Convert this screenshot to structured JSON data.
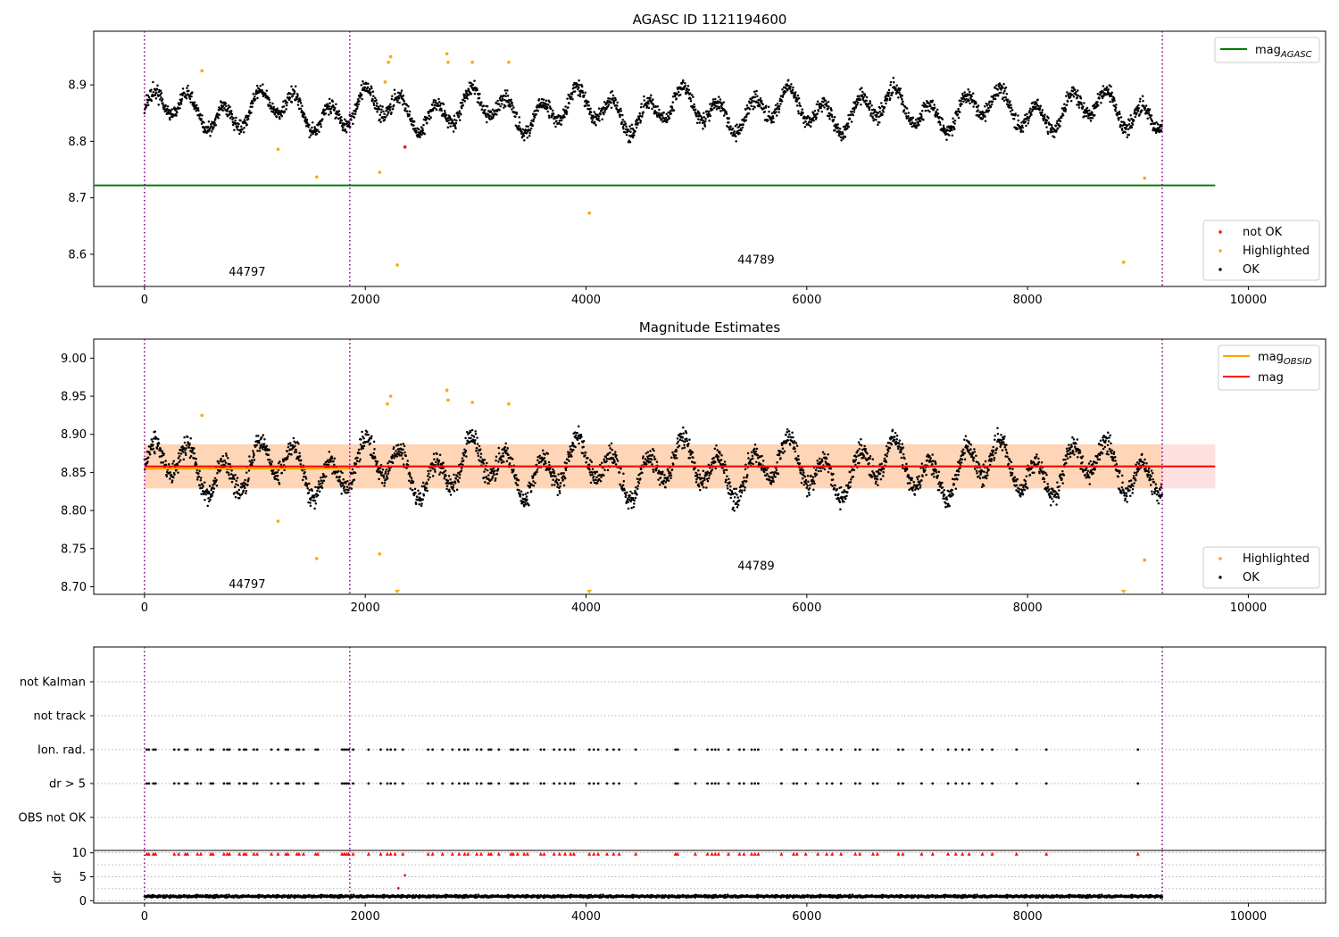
{
  "chart_data": [
    {
      "type": "scatter",
      "title": "AGASC ID 1121194600",
      "xlim": [
        -460,
        10700
      ],
      "ylim": [
        8.543,
        8.995
      ],
      "xticks": [
        0,
        2000,
        4000,
        6000,
        8000,
        10000
      ],
      "yticks": [
        8.6,
        8.7,
        8.8,
        8.9
      ],
      "obsid_boundaries": [
        0,
        1860,
        9220
      ],
      "obsid_labels": [
        {
          "text": "44797",
          "x": 930,
          "y": 8.568
        },
        {
          "text": "44789",
          "x": 5540,
          "y": 8.59
        }
      ],
      "mag_agasc": 8.722,
      "mag_agasc_x_range": [
        -460,
        9700
      ],
      "series": [
        {
          "name": "not OK",
          "color": "#ff0000",
          "points": [
            [
              2360,
              8.79
            ]
          ]
        },
        {
          "name": "Highlighted",
          "color": "#ffa500",
          "points": [
            [
              520,
              8.925
            ],
            [
              1210,
              8.786
            ],
            [
              1560,
              8.737
            ],
            [
              2130,
              8.745
            ],
            [
              2180,
              8.905
            ],
            [
              2210,
              8.94
            ],
            [
              2230,
              8.95
            ],
            [
              2290,
              8.581
            ],
            [
              2740,
              8.955
            ],
            [
              2750,
              8.94
            ],
            [
              2970,
              8.94
            ],
            [
              3300,
              8.94
            ],
            [
              4030,
              8.673
            ],
            [
              8870,
              8.586
            ],
            [
              9060,
              8.735
            ]
          ]
        },
        {
          "name": "OK",
          "color": "#000000",
          "band": {
            "x_range": [
              0,
              9220
            ],
            "center": 8.855,
            "amplitude": 0.035,
            "period": 320,
            "spread": 0.03
          }
        }
      ],
      "legends": [
        {
          "position": "upper-right",
          "entries": [
            "mag_AGASC"
          ]
        },
        {
          "position": "lower-right",
          "entries": [
            "not OK",
            "Highlighted",
            "OK"
          ]
        }
      ]
    },
    {
      "type": "scatter",
      "title": "Magnitude Estimates",
      "xlim": [
        -460,
        10700
      ],
      "ylim": [
        8.69,
        9.025
      ],
      "xticks": [
        0,
        2000,
        4000,
        6000,
        8000,
        10000
      ],
      "yticks": [
        8.7,
        8.75,
        8.8,
        8.85,
        8.9,
        8.95,
        9.0
      ],
      "obsid_boundaries": [
        0,
        1860,
        9220
      ],
      "obsid_labels": [
        {
          "text": "44797",
          "x": 930,
          "y": 8.703
        },
        {
          "text": "44789",
          "x": 5540,
          "y": 8.727
        }
      ],
      "mag": 8.858,
      "mag_band": [
        8.829,
        8.887
      ],
      "mag_obsid": [
        {
          "x_range": [
            0,
            1860
          ],
          "value": 8.855
        },
        {
          "x_range": [
            1860,
            9220
          ],
          "value": 8.858
        }
      ],
      "series": [
        {
          "name": "Highlighted",
          "color": "#ffa500",
          "points": [
            [
              520,
              8.925
            ],
            [
              1210,
              8.786
            ],
            [
              1560,
              8.737
            ],
            [
              2130,
              8.743
            ],
            [
              2200,
              8.94
            ],
            [
              2230,
              8.95
            ],
            [
              2740,
              8.958
            ],
            [
              2750,
              8.945
            ],
            [
              2970,
              8.942
            ],
            [
              3300,
              8.94
            ],
            [
              9060,
              8.735
            ]
          ]
        },
        {
          "name": "Highlighted (off-axis)",
          "color": "#ffa500",
          "points": [
            [
              2290,
              8.69
            ],
            [
              4030,
              8.69
            ],
            [
              8870,
              8.69
            ]
          ]
        },
        {
          "name": "OK",
          "color": "#000000",
          "band": {
            "x_range": [
              0,
              9220
            ],
            "center": 8.855,
            "amplitude": 0.035,
            "period": 320,
            "spread": 0.03
          }
        }
      ],
      "legends": [
        {
          "position": "upper-right",
          "entries": [
            "mag_OBSID",
            "mag"
          ]
        },
        {
          "position": "lower-right",
          "entries": [
            "Highlighted",
            "OK"
          ]
        }
      ]
    },
    {
      "type": "scatter",
      "title": "",
      "xlim": [
        -460,
        10700
      ],
      "categories": [
        "not Kalman",
        "not track",
        "Ion. rad.",
        "dr > 5",
        "OBS not OK"
      ],
      "flag_points": {
        "Ion. rad.": [
          20,
          40,
          80,
          100,
          270,
          310,
          370,
          390,
          480,
          510,
          600,
          620,
          720,
          750,
          770,
          860,
          900,
          920,
          990,
          1020,
          1150,
          1210,
          1280,
          1300,
          1380,
          1400,
          1440,
          1550,
          1570,
          1790,
          1810,
          1830,
          1850,
          1890,
          2030,
          2140,
          2200,
          2230,
          2270,
          2340,
          2570,
          2610,
          2700,
          2790,
          2850,
          2900,
          2930,
          3010,
          3050,
          3120,
          3140,
          3210,
          3320,
          3340,
          3380,
          3440,
          3470,
          3590,
          3620,
          3710,
          3760,
          3810,
          3860,
          3890,
          4030,
          4070,
          4110,
          4190,
          4250,
          4300,
          4450,
          4810,
          4830,
          4990,
          5100,
          5140,
          5170,
          5200,
          5290,
          5390,
          5430,
          5500,
          5530,
          5560,
          5770,
          5880,
          5910,
          5990,
          6100,
          6180,
          6230,
          6310,
          6440,
          6480,
          6600,
          6640,
          6830,
          6870,
          7040,
          7140,
          7280,
          7350,
          7410,
          7470,
          7590,
          7680,
          7900,
          8170,
          9000
        ],
        "dr > 5": [
          20,
          40,
          80,
          100,
          270,
          310,
          370,
          390,
          480,
          510,
          600,
          620,
          720,
          750,
          770,
          860,
          900,
          920,
          990,
          1020,
          1150,
          1210,
          1280,
          1300,
          1380,
          1400,
          1440,
          1550,
          1570,
          1790,
          1810,
          1830,
          1850,
          1890,
          2030,
          2140,
          2200,
          2230,
          2270,
          2340,
          2570,
          2610,
          2700,
          2790,
          2850,
          2900,
          2930,
          3010,
          3050,
          3120,
          3140,
          3210,
          3320,
          3340,
          3380,
          3440,
          3470,
          3590,
          3620,
          3710,
          3760,
          3810,
          3860,
          3890,
          4030,
          4070,
          4110,
          4190,
          4250,
          4300,
          4450,
          4810,
          4830,
          4990,
          5100,
          5140,
          5170,
          5200,
          5290,
          5390,
          5430,
          5500,
          5530,
          5560,
          5770,
          5880,
          5910,
          5990,
          6100,
          6180,
          6230,
          6310,
          6440,
          6480,
          6600,
          6640,
          6830,
          6870,
          7040,
          7140,
          7280,
          7350,
          7410,
          7470,
          7590,
          7680,
          7900,
          8170,
          9000
        ]
      },
      "obsid_boundaries": [
        0,
        1860,
        9220
      ]
    },
    {
      "type": "scatter",
      "title": "",
      "ylabel": "dr",
      "xlim": [
        -460,
        10700
      ],
      "ylim": [
        -0.5,
        10.5
      ],
      "xticks": [
        0,
        2000,
        4000,
        6000,
        8000,
        10000
      ],
      "yticks": [
        0,
        5,
        10
      ],
      "obsid_boundaries": [
        0,
        1860,
        9220
      ],
      "series": [
        {
          "name": "dr",
          "color": "#000000",
          "band": {
            "x_range": [
              0,
              9220
            ],
            "center": 0.9,
            "spread": 0.6
          }
        },
        {
          "name": "dr clipped",
          "color": "#ff0000",
          "marker": "triangle-up",
          "points_from": "dr > 5",
          "y": 9.8
        },
        {
          "name": "dr outlier",
          "color": "#ff0000",
          "points": [
            [
              2360,
              5.3
            ],
            [
              2300,
              2.6
            ]
          ]
        }
      ]
    }
  ]
}
